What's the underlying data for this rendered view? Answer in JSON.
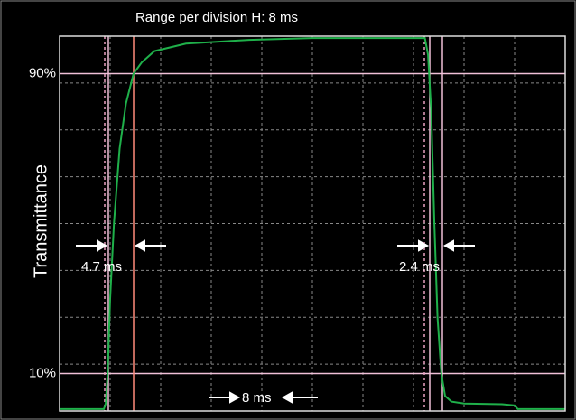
{
  "chart_data": {
    "type": "line",
    "title": "Range per division    H: 8 ms",
    "y_label": "Transmittance",
    "annotations": [
      "4.7 ms",
      "2.4 ms",
      "8 ms"
    ],
    "xlim": [
      0,
      80
    ],
    "ylim": [
      0,
      100
    ],
    "yticks": [
      {
        "value": 10,
        "label": "10%"
      },
      {
        "value": 90,
        "label": "90%"
      }
    ],
    "grid": true,
    "series": [
      {
        "name": "Transmittance",
        "color": "#1fb04a",
        "x": [
          0,
          7.0,
          7.3,
          7.6,
          8.0,
          8.6,
          9.5,
          10.5,
          11.7,
          13,
          15,
          20,
          30,
          40,
          50,
          57.8,
          58.3,
          58.8,
          59.3,
          59.8,
          60.4,
          61,
          62,
          64,
          70,
          72,
          72.5,
          80
        ],
        "values": [
          0.5,
          0.5,
          2,
          10,
          30,
          50,
          70,
          82,
          90,
          93,
          96,
          98,
          99,
          99.5,
          99.5,
          99.5,
          95,
          80,
          50,
          25,
          10,
          4,
          2.5,
          2,
          1.8,
          1.5,
          0.5,
          0.5
        ]
      }
    ]
  }
}
